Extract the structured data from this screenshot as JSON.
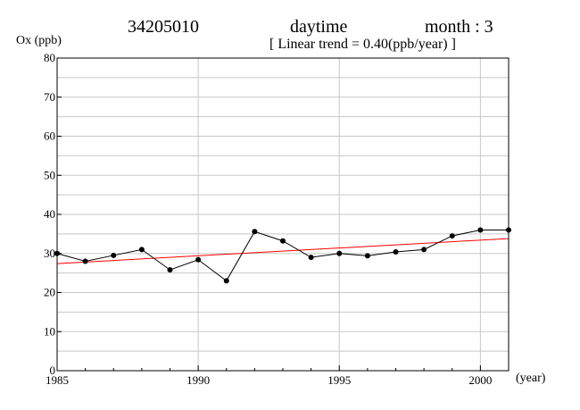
{
  "header": {
    "station": "34205010",
    "period": "daytime",
    "month": "month : 3",
    "trend": "[ Linear trend = 0.40(ppb/year) ]"
  },
  "chart_data": {
    "type": "line",
    "ylabel": "Ox (ppb)",
    "xlabel": "(year)",
    "xlim": [
      1985,
      2001
    ],
    "ylim": [
      0,
      80
    ],
    "x_ticks": [
      1985,
      1990,
      1995,
      2000
    ],
    "y_ticks": [
      0,
      10,
      20,
      30,
      40,
      50,
      60,
      70,
      80
    ],
    "grid": true,
    "series": [
      {
        "color": "#000000",
        "x": [
          1985,
          1986,
          1987,
          1988,
          1989,
          1990,
          1991,
          1992,
          1993,
          1994,
          1995,
          1996,
          1997,
          1998,
          1999,
          2000,
          2001
        ],
        "values": [
          30.0,
          28.0,
          29.5,
          31.0,
          25.8,
          28.4,
          23.0,
          35.6,
          33.2,
          29.0,
          30.0,
          29.4,
          30.4,
          31.0,
          34.5,
          36.0,
          36.0
        ]
      }
    ],
    "trend_line": {
      "color": "#ff0000",
      "slope_per_year": 0.4,
      "x": [
        1985,
        2001
      ],
      "values": [
        27.4,
        33.8
      ]
    }
  }
}
